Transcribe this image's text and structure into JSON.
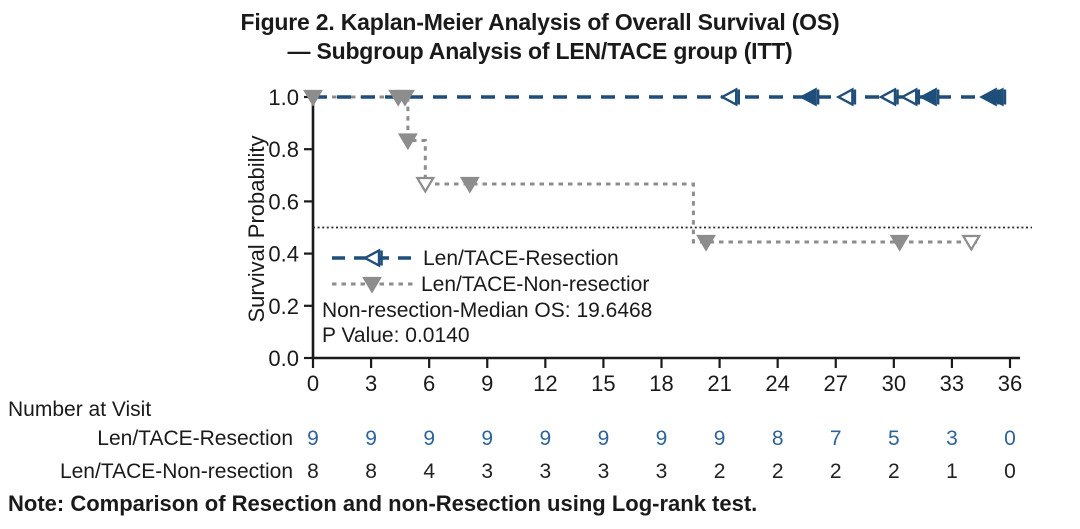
{
  "title": {
    "line1": "Figure 2. Kaplan-Meier Analysis of Overall Survival (OS)",
    "line2": "— Subgroup Analysis of LEN/TACE group (ITT)"
  },
  "chart_data": {
    "type": "line",
    "subtype": "kaplan-meier-step",
    "title": "Figure 2. Kaplan-Meier Analysis of Overall Survival (OS) — Subgroup Analysis of LEN/TACE group (ITT)",
    "xlabel": "",
    "ylabel": "Survival Probability",
    "xlim": [
      0,
      36
    ],
    "ylim": [
      0.0,
      1.0
    ],
    "x_ticks": [
      0,
      3,
      6,
      9,
      12,
      15,
      18,
      21,
      24,
      27,
      30,
      33,
      36
    ],
    "y_ticks": [
      "1.0",
      "0.8",
      "0.6",
      "0.4",
      "0.2",
      "0.0"
    ],
    "grid": false,
    "reference_line_y": 0.5,
    "legend_position": "inside-center-left",
    "series": [
      {
        "name": "Len/TACE-Resection",
        "color": "#1e4e79",
        "line_style": "dashed",
        "marker": "left-triangle",
        "steps": [
          [
            0,
            1.0
          ],
          [
            35.6,
            1.0
          ]
        ],
        "censor_marks": [
          {
            "x": 21.6,
            "y": 1.0,
            "open": true
          },
          {
            "x": 25.7,
            "y": 1.0,
            "open": false
          },
          {
            "x": 27.6,
            "y": 1.0,
            "open": true
          },
          {
            "x": 29.8,
            "y": 1.0,
            "open": true
          },
          {
            "x": 30.9,
            "y": 1.0,
            "open": true
          },
          {
            "x": 31.9,
            "y": 1.0,
            "open": false
          },
          {
            "x": 35.0,
            "y": 1.0,
            "open": false
          },
          {
            "x": 35.35,
            "y": 1.0,
            "open": false
          }
        ]
      },
      {
        "name": "Len/TACE-Non-resection",
        "color": "#8d8d8d",
        "line_style": "dotted",
        "marker": "down-triangle",
        "steps": [
          [
            0,
            1.0
          ],
          [
            4.9,
            1.0
          ],
          [
            4.9,
            0.8333
          ],
          [
            5.8,
            0.8333
          ],
          [
            5.8,
            0.6667
          ],
          [
            19.65,
            0.6667
          ],
          [
            19.65,
            0.4444
          ],
          [
            34.3,
            0.4444
          ]
        ],
        "censor_marks": [
          {
            "x": 0,
            "y": 1.0,
            "open": false
          },
          {
            "x": 4.4,
            "y": 1.0,
            "open": false
          },
          {
            "x": 4.75,
            "y": 1.0,
            "open": false
          },
          {
            "x": 4.9,
            "y": 0.8333,
            "open": false
          },
          {
            "x": 5.8,
            "y": 0.6667,
            "open": true
          },
          {
            "x": 8.1,
            "y": 0.6667,
            "open": false
          },
          {
            "x": 20.3,
            "y": 0.4444,
            "open": false
          },
          {
            "x": 30.3,
            "y": 0.4444,
            "open": false
          },
          {
            "x": 34.0,
            "y": 0.4444,
            "open": true
          }
        ]
      }
    ],
    "legend_entries": [
      "Len/TACE-Resection",
      "Len/TACE-Non-resectior"
    ],
    "annotations": [
      "Non-resection-Median OS: 19.6468",
      "P Value: 0.0140"
    ]
  },
  "legend": {
    "resection": "Len/TACE-Resection",
    "non_resection": "Len/TACE-Non-resectior"
  },
  "annotations": {
    "median_os": "Non-resection-Median OS: 19.6468",
    "p_value": "P Value: 0.0140"
  },
  "number_at_visit": {
    "heading": "Number at Visit",
    "rows": [
      {
        "label": "Len/TACE-Resection",
        "color": "#2d6399",
        "values": [
          9,
          9,
          9,
          9,
          9,
          9,
          9,
          9,
          8,
          7,
          5,
          3,
          0
        ]
      },
      {
        "label": "Len/TACE-Non-resection",
        "color": "#222222",
        "values": [
          8,
          8,
          4,
          3,
          3,
          3,
          3,
          2,
          2,
          2,
          2,
          1,
          0
        ]
      }
    ]
  },
  "note": "Note: Comparison of Resection and non-Resection using Log-rank test.",
  "colors": {
    "resection_blue": "#1e4e79",
    "non_resection_gray": "#8d8d8d",
    "numbers_blue": "#2d6399",
    "axis_black": "#1a1a1a"
  }
}
